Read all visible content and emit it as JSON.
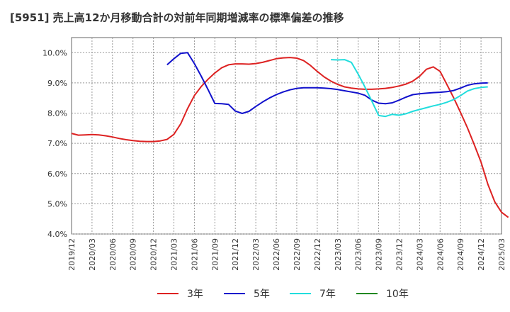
{
  "chart_data": {
    "type": "line",
    "title": "[5951]  売上高12か月移動合計の対前年同期増減率の標準偏差の推移",
    "xlabel": "",
    "ylabel": "",
    "ylim": [
      4.0,
      10.5
    ],
    "y_ticks": [
      "4.0%",
      "5.0%",
      "6.0%",
      "7.0%",
      "8.0%",
      "9.0%",
      "10.0%"
    ],
    "y_tick_values": [
      4.0,
      5.0,
      6.0,
      7.0,
      8.0,
      9.0,
      10.0
    ],
    "x_ticks": [
      "2019/12",
      "2020/03",
      "2020/06",
      "2020/09",
      "2020/12",
      "2021/03",
      "2021/06",
      "2021/09",
      "2021/12",
      "2022/03",
      "2022/06",
      "2022/09",
      "2022/12",
      "2023/03",
      "2023/06",
      "2023/09",
      "2023/12",
      "2024/03",
      "2024/06",
      "2024/09",
      "2024/12",
      "2025/03"
    ],
    "grid": true,
    "legend_position": "bottom",
    "series": [
      {
        "name": "3年",
        "color": "#dd2222",
        "start": "2019/12",
        "values": [
          7.33,
          7.27,
          7.28,
          7.29,
          7.28,
          7.25,
          7.21,
          7.16,
          7.12,
          7.09,
          7.07,
          7.06,
          7.06,
          7.08,
          7.13,
          7.3,
          7.65,
          8.15,
          8.58,
          8.88,
          9.12,
          9.33,
          9.5,
          9.6,
          9.63,
          9.63,
          9.62,
          9.64,
          9.68,
          9.74,
          9.8,
          9.83,
          9.84,
          9.82,
          9.74,
          9.58,
          9.38,
          9.2,
          9.06,
          8.95,
          8.87,
          8.83,
          8.8,
          8.79,
          8.79,
          8.8,
          8.82,
          8.85,
          8.9,
          8.96,
          9.06,
          9.22,
          9.45,
          9.53,
          9.38,
          8.95,
          8.5,
          8.02,
          7.52,
          6.96,
          6.38,
          5.65,
          5.07,
          4.72,
          4.55
        ]
      },
      {
        "name": "5年",
        "color": "#1111cc",
        "start": "2021/02",
        "values": [
          9.6,
          9.8,
          9.98,
          10.0,
          9.64,
          9.22,
          8.78,
          8.32,
          8.31,
          8.29,
          8.07,
          7.99,
          8.06,
          8.22,
          8.37,
          8.5,
          8.61,
          8.7,
          8.77,
          8.82,
          8.84,
          8.84,
          8.84,
          8.83,
          8.81,
          8.78,
          8.74,
          8.7,
          8.66,
          8.59,
          8.43,
          8.33,
          8.31,
          8.34,
          8.43,
          8.53,
          8.61,
          8.64,
          8.66,
          8.68,
          8.69,
          8.71,
          8.75,
          8.83,
          8.92,
          8.97,
          8.99,
          9.0
        ]
      },
      {
        "name": "7年",
        "color": "#22dddd",
        "start": "2023/02",
        "values": [
          9.77,
          9.76,
          9.77,
          9.68,
          9.29,
          8.86,
          8.4,
          7.92,
          7.89,
          7.96,
          7.93,
          7.98,
          8.06,
          8.12,
          8.18,
          8.24,
          8.29,
          8.36,
          8.45,
          8.58,
          8.73,
          8.81,
          8.85,
          8.87
        ]
      },
      {
        "name": "10年",
        "color": "#228822",
        "start": "2024/12",
        "values": []
      }
    ]
  }
}
